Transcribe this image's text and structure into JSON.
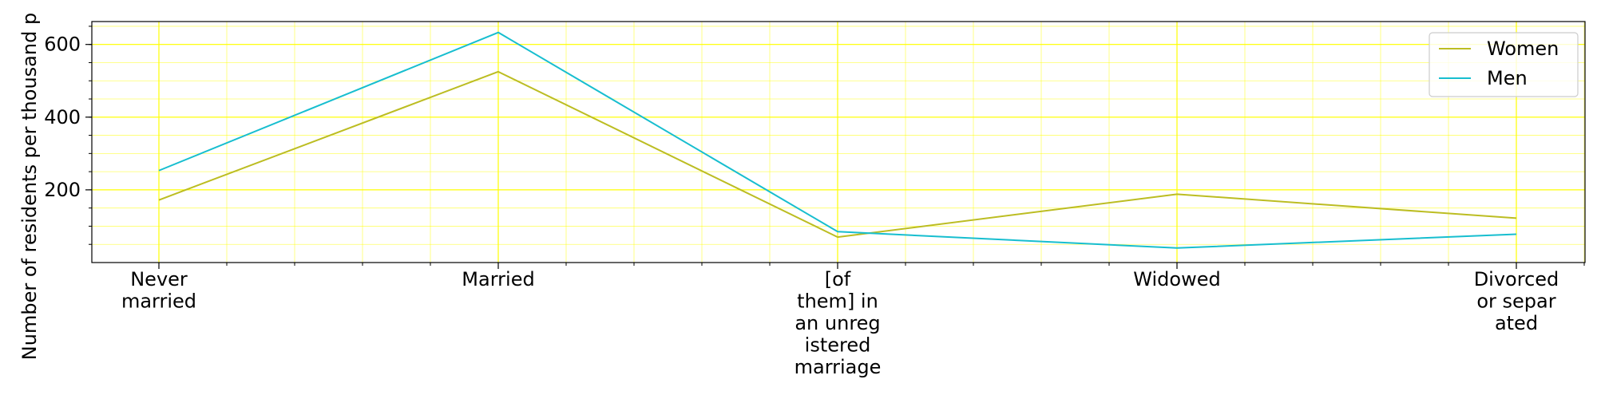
{
  "chart_data": {
    "type": "line",
    "title": "",
    "xlabel": "",
    "ylabel": "Number of residents per thousand p",
    "categories": [
      "Never\nmarried",
      "Married",
      "[of\nthem] in\nan unreg\nistered\nmarriage",
      "Widowed",
      "Divorced\nor separ\nated"
    ],
    "series": [
      {
        "name": "Women",
        "color": "#bcbd22",
        "values": [
          172,
          525,
          70,
          188,
          122
        ]
      },
      {
        "name": "Men",
        "color": "#17becf",
        "values": [
          253,
          633,
          85,
          40,
          78
        ]
      }
    ],
    "ylim": [
      0,
      663
    ],
    "yticks": [
      200,
      400,
      600
    ],
    "grid": true,
    "grid_color": "#ffff00",
    "legend_position": "top-right"
  }
}
